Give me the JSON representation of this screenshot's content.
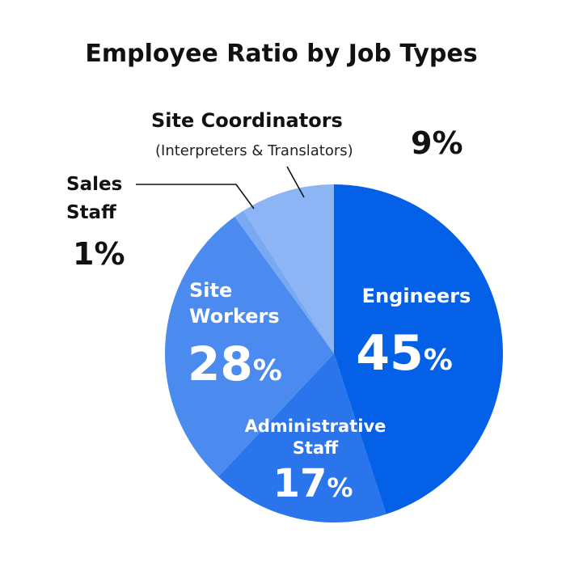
{
  "chart_data": {
    "type": "pie",
    "title": "Employee Ratio by Job Types",
    "categories": [
      "Engineers",
      "Administrative Staff",
      "Site Workers",
      "Sales Staff",
      "Site Coordinators (Interpreters & Translators)"
    ],
    "values": [
      45,
      17,
      28,
      1,
      9
    ],
    "unit": "%",
    "colors": [
      "#0560e8",
      "#2a74ec",
      "#4b8bef",
      "#7aa9f3",
      "#8db5f5"
    ],
    "labels": {
      "engineers": {
        "name": "Engineers",
        "value": "45",
        "unit": "%"
      },
      "admin": {
        "name_line1": "Administrative",
        "name_line2": "Staff",
        "value": "17",
        "unit": "%"
      },
      "site_workers": {
        "name_line1": "Site",
        "name_line2": "Workers",
        "value": "28",
        "unit": "%"
      },
      "sales": {
        "name_line1": "Sales",
        "name_line2": "Staff",
        "value": "1%"
      },
      "coordinators": {
        "name": "Site Coordinators",
        "sub": "(Interpreters & Translators)",
        "value": "9%"
      }
    }
  }
}
